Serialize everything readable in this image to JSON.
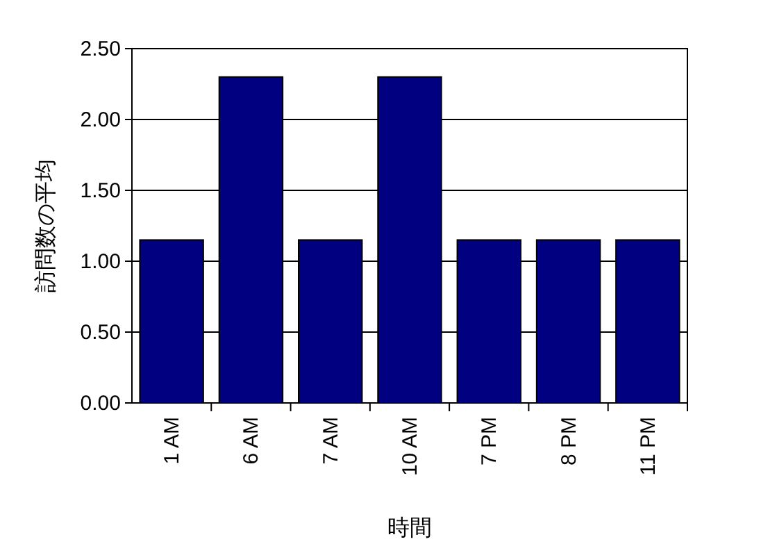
{
  "chart_data": {
    "type": "bar",
    "xlabel": "時間",
    "ylabel": "訪問数の平均",
    "categories": [
      "1 AM",
      "6 AM",
      "7 AM",
      "10 AM",
      "7 PM",
      "8 PM",
      "11 PM"
    ],
    "values": [
      1.15,
      2.3,
      1.15,
      2.3,
      1.15,
      1.15,
      1.15
    ],
    "color": "#000080",
    "ylim": [
      0,
      2.5
    ],
    "yticks": [
      {
        "value": 0,
        "label": "0.00"
      },
      {
        "value": 0.5,
        "label": "0.50"
      },
      {
        "value": 1,
        "label": "1.00"
      },
      {
        "value": 1.5,
        "label": "1.50"
      },
      {
        "value": 2,
        "label": "2.00"
      },
      {
        "value": 2.5,
        "label": "2.50"
      }
    ],
    "grid": "y"
  }
}
